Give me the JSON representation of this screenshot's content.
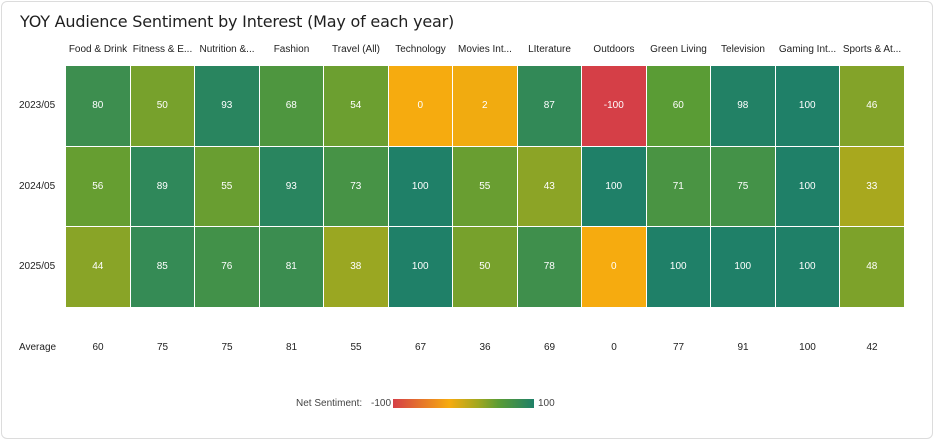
{
  "chart_data": {
    "type": "heatmap",
    "title": "YOY Audience Sentiment by Interest (May of each year)",
    "columns": [
      "Food & Drink",
      "Fitness & E...",
      "Nutrition &...",
      "Fashion",
      "Travel (All)",
      "Technology",
      "Movies Int...",
      "LIterature",
      "Outdoors",
      "Green Living",
      "Television",
      "Gaming Int...",
      "Sports & At..."
    ],
    "rows": [
      {
        "label": "2023/05",
        "values": [
          80,
          50,
          93,
          68,
          54,
          0,
          2,
          87,
          -100,
          60,
          98,
          100,
          46
        ]
      },
      {
        "label": "2024/05",
        "values": [
          56,
          89,
          55,
          93,
          73,
          100,
          55,
          43,
          100,
          71,
          75,
          100,
          33
        ]
      },
      {
        "label": "2025/05",
        "values": [
          44,
          85,
          76,
          81,
          38,
          100,
          50,
          78,
          0,
          100,
          100,
          100,
          48
        ]
      }
    ],
    "average_label": "Average",
    "averages": [
      60,
      75,
      75,
      81,
      55,
      67,
      36,
      69,
      0,
      77,
      91,
      100,
      42
    ],
    "legend": {
      "title": "Net Sentiment:",
      "min": -100,
      "max": 100,
      "min_label": "-100",
      "max_label": "100"
    },
    "colors": {
      "negative": "#d53f47",
      "neutral": "#f6ab0f",
      "mid": "#a3a81f",
      "positive": "#1f8068"
    }
  }
}
